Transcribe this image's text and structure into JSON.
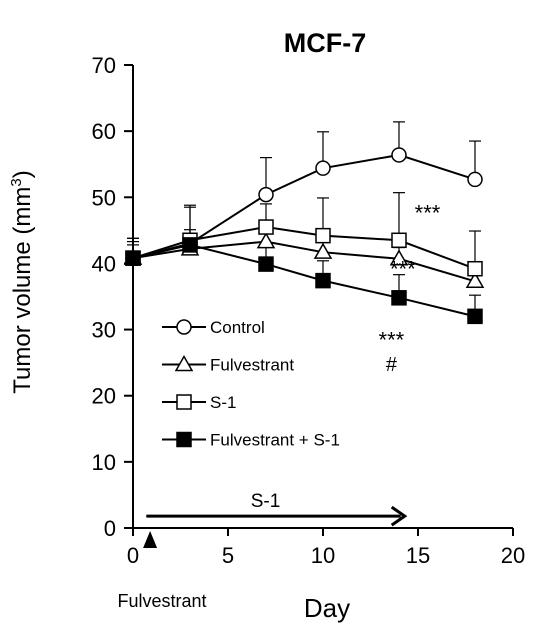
{
  "chart_data": {
    "type": "line",
    "title": "MCF-7",
    "xlabel": "Day",
    "ylabel": "Tumor volume (mm",
    "ylabel_sup": "3",
    "ylabel_close": ")",
    "xlim": [
      0,
      20
    ],
    "ylim": [
      0,
      70
    ],
    "xticks": [
      0,
      5,
      10,
      15,
      20
    ],
    "yticks": [
      0,
      10,
      20,
      30,
      40,
      50,
      60,
      70
    ],
    "grid": false,
    "legend_position": "lower-left",
    "series": [
      {
        "name": "Control",
        "marker": "open-circle",
        "x": [
          0,
          3,
          7,
          10,
          14,
          18
        ],
        "y": [
          40.8,
          43.0,
          50.4,
          54.4,
          56.4,
          52.7
        ],
        "err": [
          3.0,
          5.5,
          5.6,
          5.5,
          5.0,
          5.8
        ]
      },
      {
        "name": "Fulvestrant",
        "marker": "open-triangle",
        "x": [
          0,
          3,
          7,
          10,
          14,
          18
        ],
        "y": [
          40.8,
          42.2,
          43.3,
          41.7,
          40.7,
          37.3
        ],
        "err": [
          2.5,
          2.0,
          2.5,
          2.5,
          1.7,
          2.0
        ]
      },
      {
        "name": "S-1",
        "marker": "open-square",
        "x": [
          0,
          3,
          7,
          10,
          14,
          18
        ],
        "y": [
          40.8,
          43.5,
          45.5,
          44.2,
          43.5,
          39.2
        ],
        "err": [
          2.0,
          5.3,
          3.5,
          5.7,
          7.2,
          5.7
        ]
      },
      {
        "name": "Fulvestrant + S-1",
        "marker": "filled-square",
        "x": [
          0,
          3,
          7,
          10,
          14,
          18
        ],
        "y": [
          40.8,
          42.8,
          39.9,
          37.4,
          34.8,
          32.0
        ],
        "err": [
          3.0,
          2.3,
          2.9,
          3.0,
          3.5,
          3.2
        ]
      }
    ],
    "annotations": [
      {
        "text": "***",
        "x": 15.5,
        "y": 46.5
      },
      {
        "text": "***",
        "x": 14.2,
        "y": 38.0
      },
      {
        "text": "***",
        "x": 13.6,
        "y": 27.3
      },
      {
        "text": "#",
        "x": 13.6,
        "y": 23.7
      }
    ],
    "treatment_arrow": {
      "label": "S-1",
      "x_start": 0.7,
      "x_end": 14.3,
      "y": 1.8
    },
    "injection_marker": {
      "label": "Fulvestrant",
      "x": 0.9
    }
  }
}
